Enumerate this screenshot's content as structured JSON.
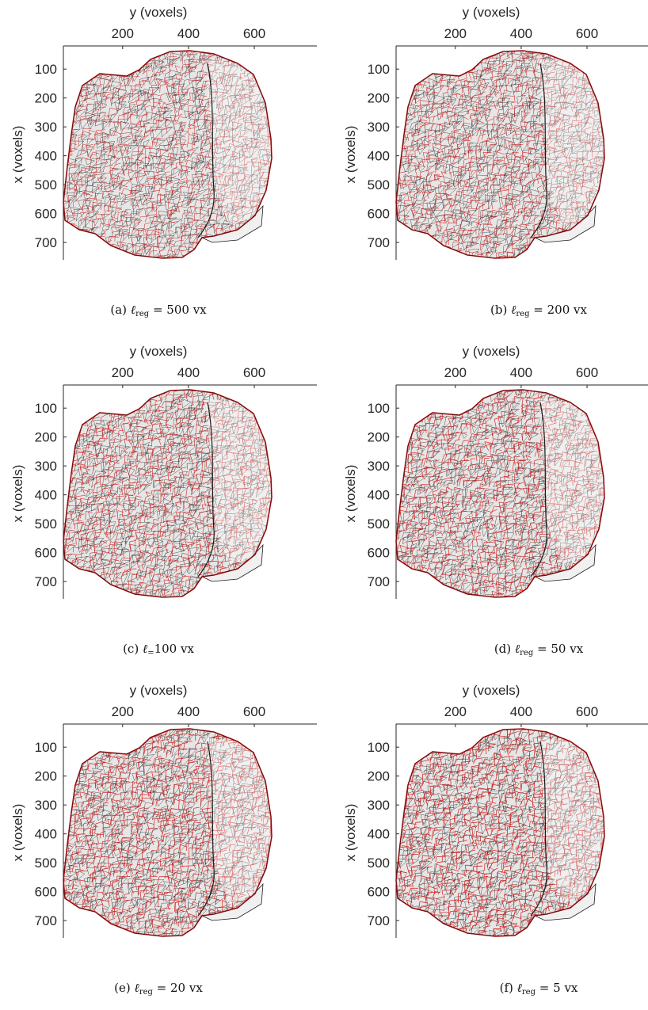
{
  "panels": [
    {
      "id": "a",
      "caption_label": "(a)",
      "symbol": "ℓ",
      "subscript": "reg",
      "equals": " = ",
      "value": "500",
      "unit": " vx"
    },
    {
      "id": "b",
      "caption_label": "(b)",
      "symbol": "ℓ",
      "subscript": "reg",
      "equals": " = ",
      "value": "200",
      "unit": " vx"
    },
    {
      "id": "c",
      "caption_label": "(c)",
      "symbol": "ℓ",
      "subscript": "=",
      "equals": "",
      "value": "100",
      "unit": " vx"
    },
    {
      "id": "d",
      "caption_label": "(d)",
      "symbol": "ℓ",
      "subscript": "reg",
      "equals": " = ",
      "value": "50",
      "unit": " vx"
    },
    {
      "id": "e",
      "caption_label": "(e)",
      "symbol": "ℓ",
      "subscript": "reg",
      "equals": " = ",
      "value": "20",
      "unit": " vx"
    },
    {
      "id": "f",
      "caption_label": "(f)",
      "symbol": "ℓ",
      "subscript": "reg",
      "equals": " = ",
      "value": "5",
      "unit": " vx"
    }
  ],
  "axes": {
    "xlabel": "y (voxels)",
    "ylabel": "x (voxels)",
    "x_ticks": [
      "200",
      "400",
      "600"
    ],
    "y_ticks": [
      "100",
      "200",
      "300",
      "400",
      "500",
      "600",
      "700"
    ]
  },
  "colors": {
    "mesh_black": "#1a1a1a",
    "mesh_red": "#d01010",
    "fill": "#e6e6e6"
  }
}
